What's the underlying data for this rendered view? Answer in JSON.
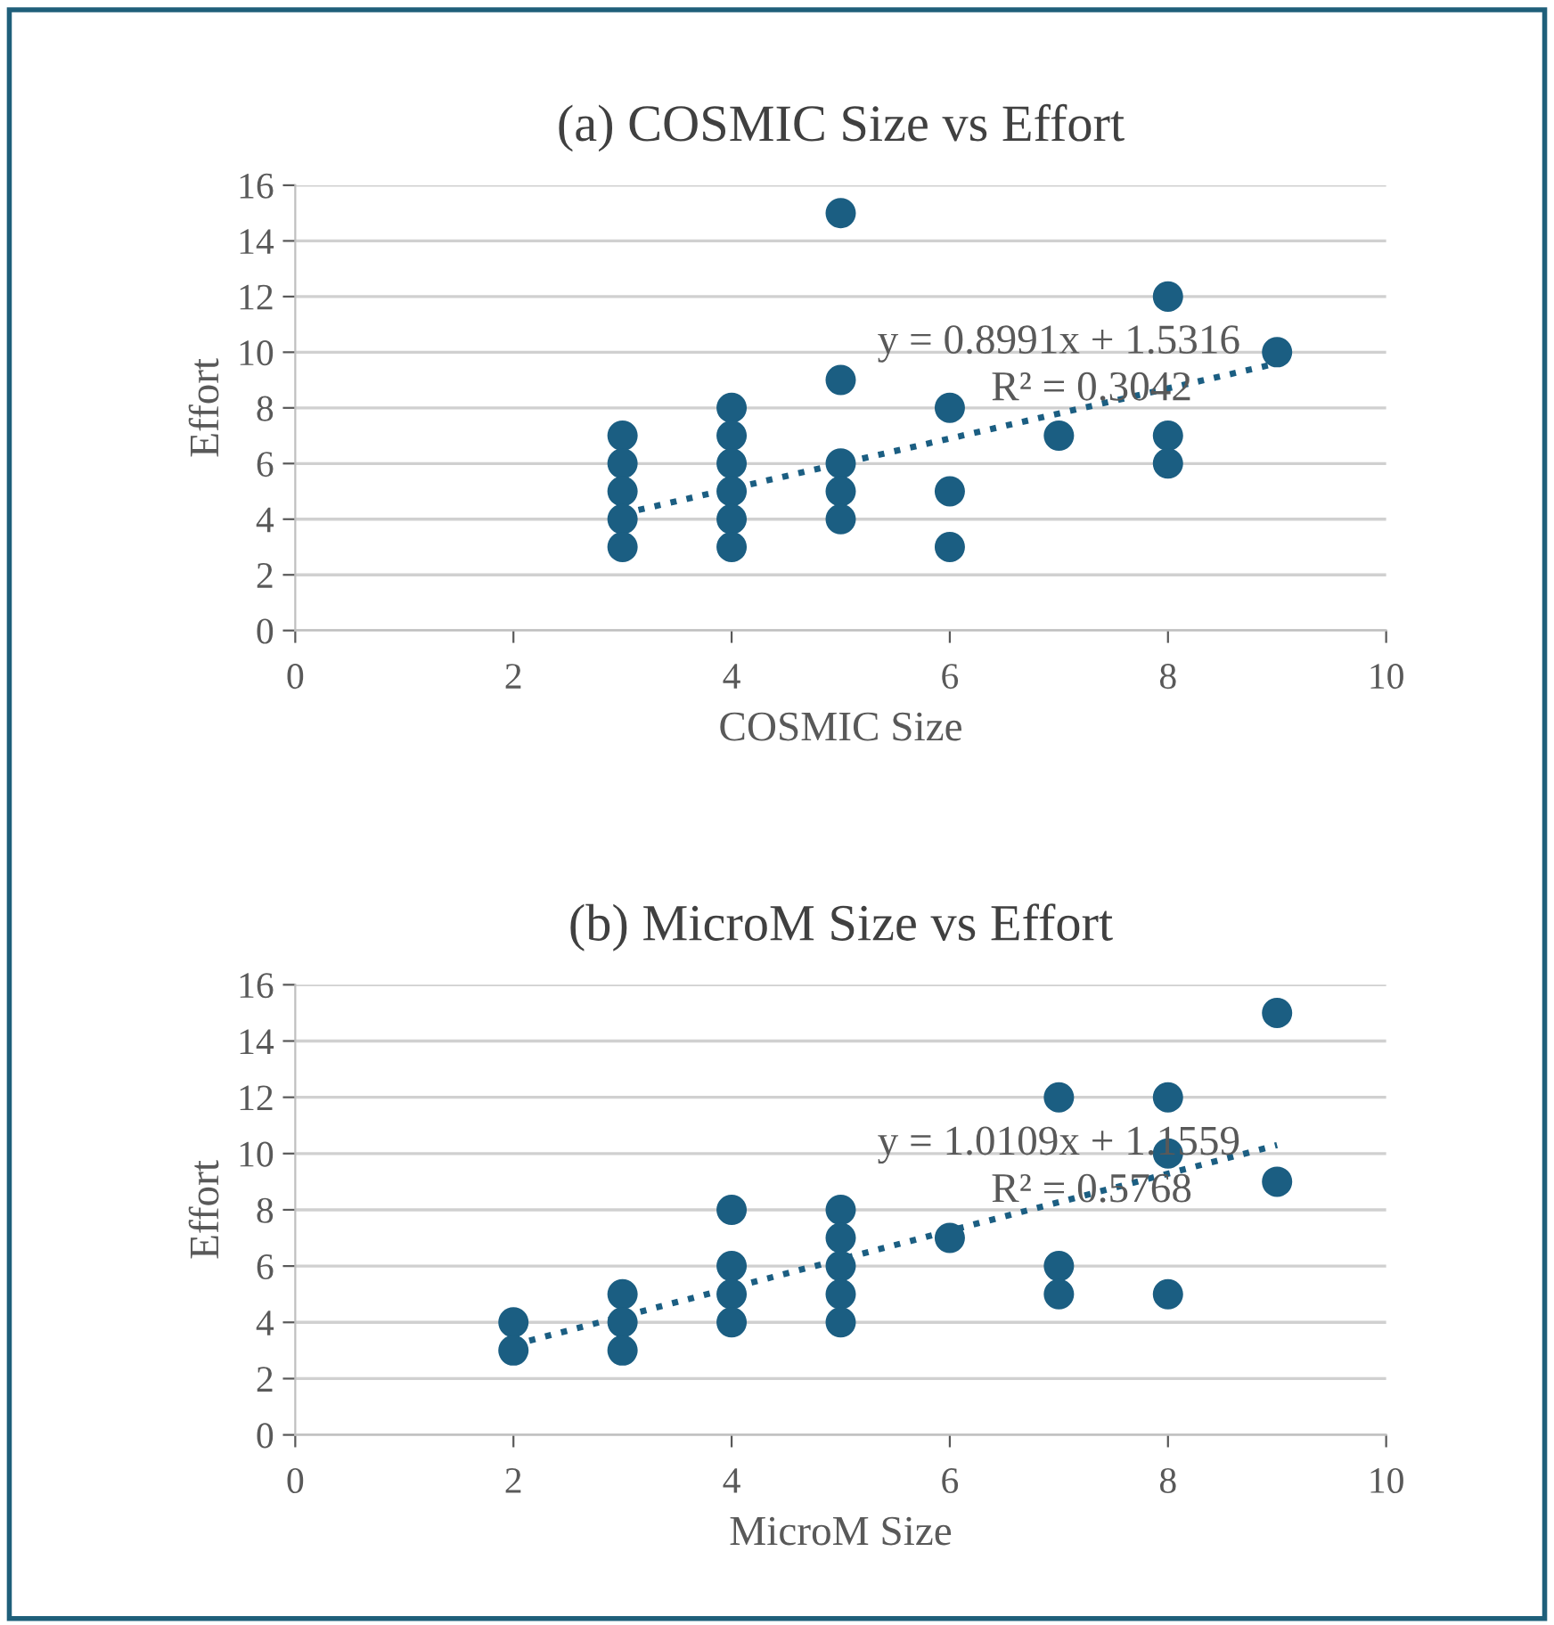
{
  "chart_data": [
    {
      "type": "scatter",
      "title": "(a) COSMIC Size vs Effort",
      "xlabel": "COSMIC Size",
      "ylabel": "Effort",
      "xlim": [
        0,
        10
      ],
      "xticks": [
        0,
        2,
        4,
        6,
        8,
        10
      ],
      "ylim": [
        0,
        16
      ],
      "yticks": [
        0,
        2,
        4,
        6,
        8,
        10,
        12,
        14,
        16
      ],
      "grid": "y",
      "series": [
        {
          "marker": "circle",
          "color": "#1b5e82",
          "x": [
            3,
            3,
            3,
            3,
            3,
            4,
            4,
            4,
            4,
            4,
            4,
            5,
            5,
            5,
            5,
            5,
            6,
            6,
            6,
            7,
            8,
            8,
            8,
            9
          ],
          "values": [
            7,
            6,
            5,
            4,
            3,
            8,
            7,
            6,
            5,
            4,
            3,
            15,
            9,
            6,
            5,
            4,
            8,
            5,
            3,
            7,
            12,
            7,
            6,
            10
          ]
        },
        {
          "type": "line",
          "color": "#1b5e82",
          "line_style": "dotted",
          "x": [
            3,
            9
          ],
          "values": [
            4.2,
            9.6
          ]
        }
      ],
      "annotations": [
        "y = 0.8991x + 1.5316",
        "R² = 0.3042"
      ]
    },
    {
      "type": "scatter",
      "title": "(b) MicroM Size vs Effort",
      "xlabel": "MicroM Size",
      "ylabel": "Effort",
      "xlim": [
        0,
        10
      ],
      "xticks": [
        0,
        2,
        4,
        6,
        8,
        10
      ],
      "ylim": [
        0,
        16
      ],
      "yticks": [
        0,
        2,
        4,
        6,
        8,
        10,
        12,
        14,
        16
      ],
      "grid": "y",
      "series": [
        {
          "marker": "circle",
          "color": "#1b5e82",
          "x": [
            2,
            2,
            3,
            3,
            3,
            4,
            4,
            4,
            4,
            5,
            5,
            5,
            5,
            5,
            6,
            7,
            7,
            7,
            8,
            8,
            8,
            9,
            9
          ],
          "values": [
            4,
            3,
            5,
            4,
            3,
            8,
            6,
            5,
            4,
            8,
            7,
            6,
            5,
            4,
            7,
            12,
            6,
            5,
            12,
            10,
            5,
            15,
            9
          ]
        },
        {
          "type": "line",
          "color": "#1b5e82",
          "line_style": "dotted",
          "x": [
            2,
            9
          ],
          "values": [
            3.2,
            10.3
          ]
        }
      ],
      "annotations": [
        "y = 1.0109x + 1.1559",
        "R² = 0.5768"
      ]
    }
  ]
}
